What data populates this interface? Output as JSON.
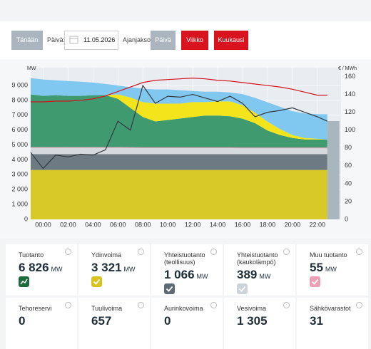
{
  "toolbar": {
    "today": "Tänään",
    "day_label": "Päivä:",
    "date": "11.05.2026",
    "period_label": "Ajanjakso:",
    "periods": [
      "Päivä",
      "Viikko",
      "Kuukausi"
    ]
  },
  "chart_data": {
    "type": "area",
    "y_label": "MW",
    "y2_label": "€ / MWh",
    "x": [
      -1,
      0,
      1,
      2,
      3,
      4,
      5,
      6,
      7,
      8,
      9,
      10,
      11,
      12,
      13,
      14,
      15,
      16,
      17,
      18,
      19,
      20,
      21,
      22,
      22.8
    ],
    "xlim": [
      -1,
      23.9
    ],
    "xticks": [
      {
        "value": 0,
        "label": "00:00"
      },
      {
        "value": 2,
        "label": "02:00"
      },
      {
        "value": 4,
        "label": "04:00"
      },
      {
        "value": 6,
        "label": "06:00"
      },
      {
        "value": 8,
        "label": "08:00"
      },
      {
        "value": 10,
        "label": "10:00"
      },
      {
        "value": 12,
        "label": "12:00"
      },
      {
        "value": 14,
        "label": "14:00"
      },
      {
        "value": 16,
        "label": "16:00"
      },
      {
        "value": 18,
        "label": "18:00"
      },
      {
        "value": 20,
        "label": "20:00"
      },
      {
        "value": 22,
        "label": "22:00"
      }
    ],
    "ylim": [
      0,
      10200
    ],
    "yticks": [
      0,
      {
        "value": 1000,
        "label": "1 000"
      },
      {
        "value": 2000,
        "label": "2 000"
      },
      {
        "value": 3000,
        "label": "3 000"
      },
      {
        "value": 4000,
        "label": "4 000"
      },
      {
        "value": 5000,
        "label": "5 000"
      },
      {
        "value": 6000,
        "label": "6 000"
      },
      {
        "value": 7000,
        "label": "7 000"
      },
      {
        "value": 8000,
        "label": "8 000"
      },
      {
        "value": 9000,
        "label": "9 000"
      }
    ],
    "y2lim": [
      0,
      170
    ],
    "y2ticks": [
      0,
      20,
      40,
      60,
      80,
      100,
      120,
      140,
      160
    ],
    "grid": true,
    "series": [
      {
        "color": "#d8c828",
        "values": [
          3321,
          3321,
          3321,
          3321,
          3321,
          3321,
          3321,
          3321,
          3321,
          3321,
          3321,
          3321,
          3321,
          3321,
          3321,
          3321,
          3321,
          3321,
          3321,
          3321,
          3321,
          3321,
          3321,
          3321,
          3321
        ]
      },
      {
        "color": "#6d7a83",
        "values": [
          1066,
          1066,
          1066,
          1066,
          1066,
          1066,
          1066,
          1066,
          1066,
          1066,
          1066,
          1066,
          1066,
          1066,
          1066,
          1066,
          1066,
          1066,
          1066,
          1066,
          1066,
          1066,
          1066,
          1066,
          1066
        ]
      },
      {
        "color": "#d6dadf",
        "values": [
          420,
          420,
          420,
          420,
          420,
          420,
          420,
          420,
          410,
          400,
          400,
          400,
          400,
          400,
          400,
          400,
          400,
          390,
          390,
          390,
          390,
          389,
          389,
          389,
          389
        ]
      },
      {
        "color": "#e8a0b4",
        "values": [
          55,
          55,
          55,
          55,
          55,
          55,
          55,
          55,
          55,
          55,
          55,
          55,
          55,
          55,
          55,
          55,
          55,
          55,
          55,
          55,
          55,
          55,
          55,
          55,
          55
        ]
      },
      {
        "color": "#3f9a6f",
        "values": [
          3540,
          3440,
          3490,
          3440,
          3440,
          3490,
          3490,
          3240,
          2640,
          2040,
          1740,
          1840,
          1940,
          2040,
          2140,
          2140,
          2090,
          1940,
          1640,
          1140,
          840,
          640,
          540,
          540,
          540
        ]
      },
      {
        "color": "#f4e41c",
        "values": [
          0,
          0,
          0,
          0,
          0,
          0,
          0,
          300,
          700,
          1000,
          1200,
          1100,
          1000,
          1000,
          900,
          950,
          1000,
          900,
          700,
          600,
          400,
          200,
          100,
          50,
          0
        ]
      },
      {
        "color": "#80c8f0",
        "values": [
          1100,
          1100,
          1000,
          1000,
          950,
          850,
          750,
          600,
          700,
          900,
          950,
          950,
          900,
          750,
          700,
          650,
          600,
          750,
          1000,
          1300,
          1500,
          1600,
          1650,
          1650,
          1700
        ]
      },
      {
        "type": "line",
        "color": "#d0141f",
        "values": [
          7900,
          7900,
          7950,
          7950,
          8000,
          8100,
          8300,
          8600,
          8900,
          9200,
          9350,
          9400,
          9450,
          9500,
          9450,
          9350,
          9300,
          9200,
          9100,
          9000,
          8900,
          8750,
          8550,
          8350,
          8350
        ]
      },
      {
        "type": "line",
        "axis": "y2",
        "color": "#333a40",
        "values": [
          75,
          57,
          72,
          70,
          73,
          72,
          78,
          110,
          100,
          150,
          130,
          138,
          137,
          140,
          136,
          132,
          138,
          130,
          115,
          120,
          122,
          125,
          120,
          115,
          110
        ]
      }
    ]
  },
  "cards": [
    {
      "label": "Tuotanto",
      "value": "6 826",
      "unit": "MW"
    },
    {
      "label": "Ydinvoima",
      "value": "3 321",
      "unit": "MW"
    },
    {
      "label": "Yhteistuotanto (teollisuus)",
      "value": "1 066",
      "unit": "MW"
    },
    {
      "label": "Yhteistuotanto (kaukolämpö)",
      "value": "389",
      "unit": "MW"
    },
    {
      "label": "Muu tuotanto",
      "value": "55",
      "unit": "MW"
    },
    {
      "label": "Tehoreservi",
      "value": "0"
    },
    {
      "label": "Tuulivoima",
      "value": "657"
    },
    {
      "label": "Aurinkovoima",
      "value": "0"
    },
    {
      "label": "Vesivoima",
      "value": "1 305"
    },
    {
      "label": "Sähkövarastot",
      "value": "31"
    }
  ]
}
